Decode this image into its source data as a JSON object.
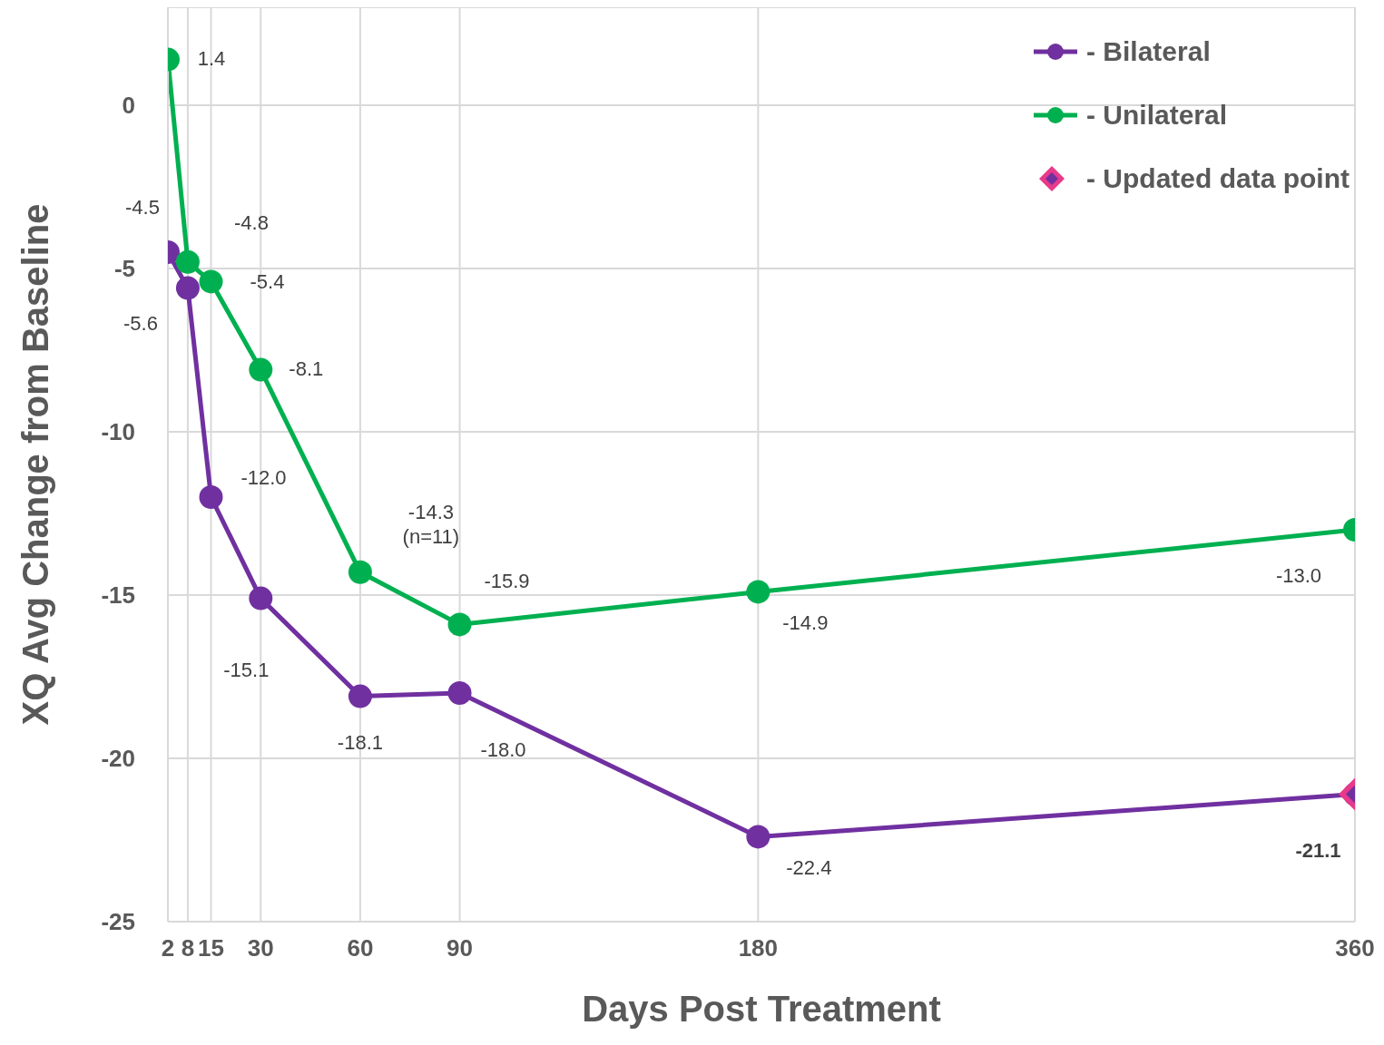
{
  "chart_data": {
    "type": "line",
    "xlabel": "Days Post Treatment",
    "ylabel": "XQ Avg Change from Baseline",
    "x": [
      2,
      8,
      15,
      30,
      60,
      90,
      180,
      360
    ],
    "xlim": [
      2,
      360
    ],
    "xticks": [
      2,
      8,
      15,
      30,
      60,
      90,
      180,
      360
    ],
    "ylim": [
      -25,
      3
    ],
    "yticks": [
      -25,
      -20,
      -15,
      -10,
      -5,
      0
    ],
    "grid": true,
    "legend": "top right",
    "marker": "circle",
    "series": [
      {
        "name": "- Bilateral",
        "color": "#7030a0",
        "values": [
          -4.5,
          -5.6,
          -12.0,
          -15.1,
          -18.1,
          -18.0,
          -22.4,
          -21.1
        ],
        "value_labels": [
          "-4.5",
          "-5.6",
          "-12.0",
          "-15.1",
          "-18.1",
          "-18.0",
          "-22.4",
          null
        ]
      },
      {
        "name": "- Unilateral",
        "color": "#00b050",
        "values": [
          1.4,
          -4.8,
          -5.4,
          -8.1,
          -14.3,
          -15.9,
          -14.9,
          -13.0
        ],
        "value_labels": [
          "1.4",
          "-4.8",
          "-5.4",
          "-8.1",
          "-14.3 (n=11)",
          "-15.9",
          "-14.9",
          "-13.0"
        ]
      },
      {
        "name": "- Updated data point",
        "type": "scatter",
        "marker": "diamond",
        "color": "#e8398a",
        "x": [
          360
        ],
        "values": [
          -21.1
        ],
        "value_labels": [
          "-21.1"
        ]
      }
    ]
  }
}
